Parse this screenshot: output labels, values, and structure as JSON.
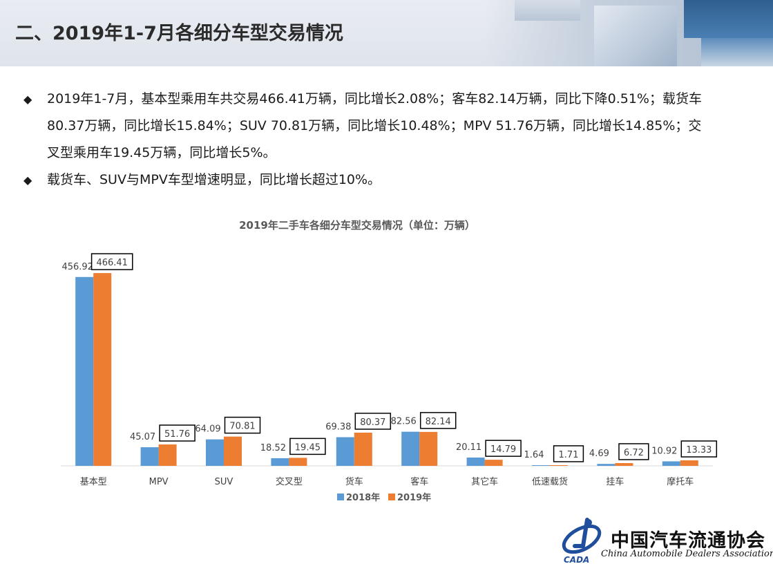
{
  "header": {
    "title": "二、2019年1-7月各细分车型交易情况"
  },
  "bullets": [
    {
      "marker": "◆",
      "text": "2019年1-7月，基本型乘用车共交易466.41万辆，同比增长2.08%；客车82.14万辆，同比下降0.51%；载货车80.37万辆，同比增长15.84%；SUV 70.81万辆，同比增长10.48%；MPV 51.76万辆，同比增长14.85%；交叉型乘用车19.45万辆，同比增长5%。"
    },
    {
      "marker": "◆",
      "text": "载货车、SUV与MPV车型增速明显，同比增长超过10%。"
    }
  ],
  "chart_data": {
    "type": "bar",
    "title": "2019年二手车各细分车型交易情况（单位：万辆）",
    "categories": [
      "基本型",
      "MPV",
      "SUV",
      "交叉型",
      "货车",
      "客车",
      "其它车",
      "低速载货",
      "挂车",
      "摩托车"
    ],
    "series": [
      {
        "name": "2018年",
        "color": "#5b9bd5",
        "values": [
          456.92,
          45.07,
          64.09,
          18.52,
          69.38,
          82.56,
          20.11,
          1.64,
          4.69,
          10.92
        ],
        "labels": [
          "456.92",
          "45.07",
          "64.09",
          "18.52",
          "69.38",
          "82.56",
          "20.11",
          "1.64",
          "4.69",
          "10.92"
        ]
      },
      {
        "name": "2019年",
        "color": "#ed7d31",
        "values": [
          466.41,
          51.76,
          70.81,
          19.45,
          80.37,
          82.14,
          14.79,
          1.71,
          6.72,
          13.33
        ],
        "labels": [
          "466.41",
          "51.76",
          "70.81",
          "19.45",
          "80.37",
          "82.14",
          "14.79",
          "1.71",
          "6.72",
          "13.33"
        ]
      }
    ],
    "ylim": [
      0,
      500
    ],
    "grid": false,
    "legend_position": "bottom",
    "boxed_series": "2019年"
  },
  "logo": {
    "abbr": "CADA",
    "name": "中国汽车流通协会",
    "english": "China Automobile Dealers Association"
  }
}
